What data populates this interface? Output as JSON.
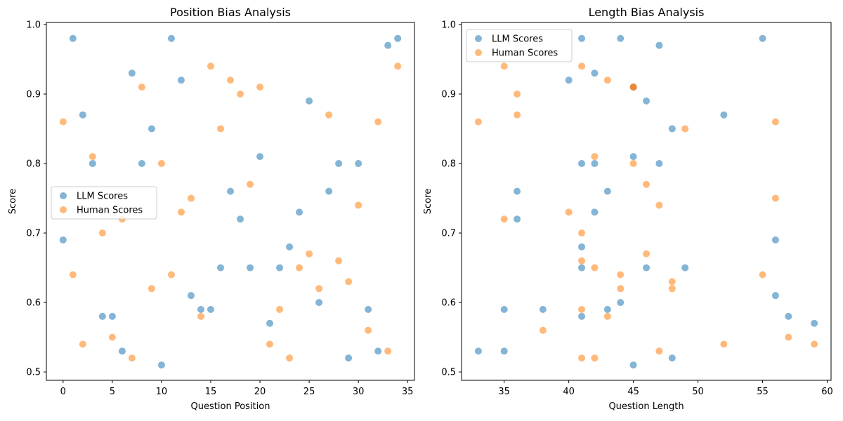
{
  "colors": {
    "llm": "#1f77b4",
    "human": "#ff7f0e",
    "axis": "#000000",
    "legend_border": "#cccccc"
  },
  "chart_data": [
    {
      "type": "scatter",
      "title": "Position Bias Analysis",
      "xlabel": "Question Position",
      "ylabel": "Score",
      "xlim": [
        -1.7,
        35.7
      ],
      "ylim": [
        0.488,
        1.003
      ],
      "xticks": [
        0,
        5,
        10,
        15,
        20,
        25,
        30,
        35
      ],
      "xtick_labels": [
        "0",
        "5",
        "10",
        "15",
        "20",
        "25",
        "30",
        "35"
      ],
      "yticks": [
        0.5,
        0.6,
        0.7,
        0.8,
        0.9,
        1.0
      ],
      "ytick_labels": [
        "0.5",
        "0.6",
        "0.7",
        "0.8",
        "0.9",
        "1.0"
      ],
      "grid": false,
      "legend_position": "center-left",
      "series": [
        {
          "name": "LLM Scores",
          "x": [
            0,
            1,
            2,
            3,
            4,
            5,
            6,
            7,
            8,
            9,
            10,
            11,
            12,
            13,
            14,
            15,
            16,
            17,
            18,
            19,
            20,
            21,
            22,
            23,
            24,
            25,
            26,
            27,
            28,
            29,
            30,
            31,
            32,
            33,
            34
          ],
          "y": [
            0.69,
            0.98,
            0.87,
            0.8,
            0.58,
            0.58,
            0.53,
            0.93,
            0.8,
            0.85,
            0.51,
            0.98,
            0.92,
            0.61,
            0.59,
            0.59,
            0.65,
            0.76,
            0.72,
            0.65,
            0.81,
            0.57,
            0.65,
            0.68,
            0.73,
            0.89,
            0.6,
            0.76,
            0.8,
            0.52,
            0.8,
            0.59,
            0.53,
            0.97,
            0.98
          ]
        },
        {
          "name": "Human Scores",
          "x": [
            0,
            1,
            2,
            3,
            4,
            5,
            6,
            7,
            8,
            9,
            10,
            11,
            12,
            13,
            14,
            15,
            16,
            17,
            18,
            19,
            20,
            21,
            22,
            23,
            24,
            25,
            26,
            27,
            28,
            29,
            30,
            31,
            32,
            33,
            34
          ],
          "y": [
            0.86,
            0.64,
            0.54,
            0.81,
            0.7,
            0.55,
            0.72,
            0.52,
            0.91,
            0.62,
            0.8,
            0.64,
            0.73,
            0.75,
            0.58,
            0.94,
            0.85,
            0.92,
            0.9,
            0.77,
            0.91,
            0.54,
            0.59,
            0.52,
            0.65,
            0.67,
            0.62,
            0.87,
            0.66,
            0.63,
            0.74,
            0.56,
            0.86,
            0.53,
            0.94
          ]
        }
      ]
    },
    {
      "type": "scatter",
      "title": "Length Bias Analysis",
      "xlabel": "Question Length",
      "ylabel": "Score",
      "xlim": [
        31.7,
        60.3
      ],
      "ylim": [
        0.488,
        1.003
      ],
      "xticks": [
        35,
        40,
        45,
        50,
        55,
        60
      ],
      "xtick_labels": [
        "35",
        "40",
        "45",
        "50",
        "55",
        "60"
      ],
      "yticks": [
        0.5,
        0.6,
        0.7,
        0.8,
        0.9,
        1.0
      ],
      "ytick_labels": [
        "0.5",
        "0.6",
        "0.7",
        "0.8",
        "0.9",
        "1.0"
      ],
      "grid": false,
      "legend_position": "top-left",
      "series": [
        {
          "name": "LLM Scores",
          "x": [
            41,
            44,
            55,
            47,
            42,
            40,
            45,
            46,
            52,
            48,
            41,
            42,
            45,
            47,
            36,
            43,
            36,
            42,
            56,
            41,
            41,
            46,
            49,
            56,
            38,
            35,
            41,
            43,
            44,
            57,
            59,
            33,
            35,
            45,
            48
          ],
          "y": [
            0.98,
            0.98,
            0.98,
            0.97,
            0.93,
            0.92,
            0.91,
            0.89,
            0.87,
            0.85,
            0.8,
            0.8,
            0.81,
            0.8,
            0.76,
            0.76,
            0.72,
            0.73,
            0.69,
            0.68,
            0.65,
            0.65,
            0.65,
            0.61,
            0.59,
            0.59,
            0.58,
            0.59,
            0.6,
            0.58,
            0.57,
            0.53,
            0.53,
            0.51,
            0.52
          ]
        },
        {
          "name": "Human Scores",
          "x": [
            35,
            41,
            43,
            45,
            45,
            36,
            36,
            33,
            49,
            56,
            42,
            45,
            46,
            56,
            47,
            40,
            35,
            41,
            41,
            46,
            42,
            44,
            55,
            48,
            44,
            48,
            41,
            43,
            38,
            57,
            52,
            59,
            47,
            41,
            42
          ],
          "y": [
            0.94,
            0.94,
            0.92,
            0.91,
            0.91,
            0.9,
            0.87,
            0.86,
            0.85,
            0.86,
            0.81,
            0.8,
            0.77,
            0.75,
            0.74,
            0.73,
            0.72,
            0.7,
            0.66,
            0.67,
            0.65,
            0.64,
            0.64,
            0.63,
            0.62,
            0.62,
            0.59,
            0.58,
            0.56,
            0.55,
            0.54,
            0.54,
            0.53,
            0.52,
            0.52
          ]
        }
      ]
    }
  ]
}
